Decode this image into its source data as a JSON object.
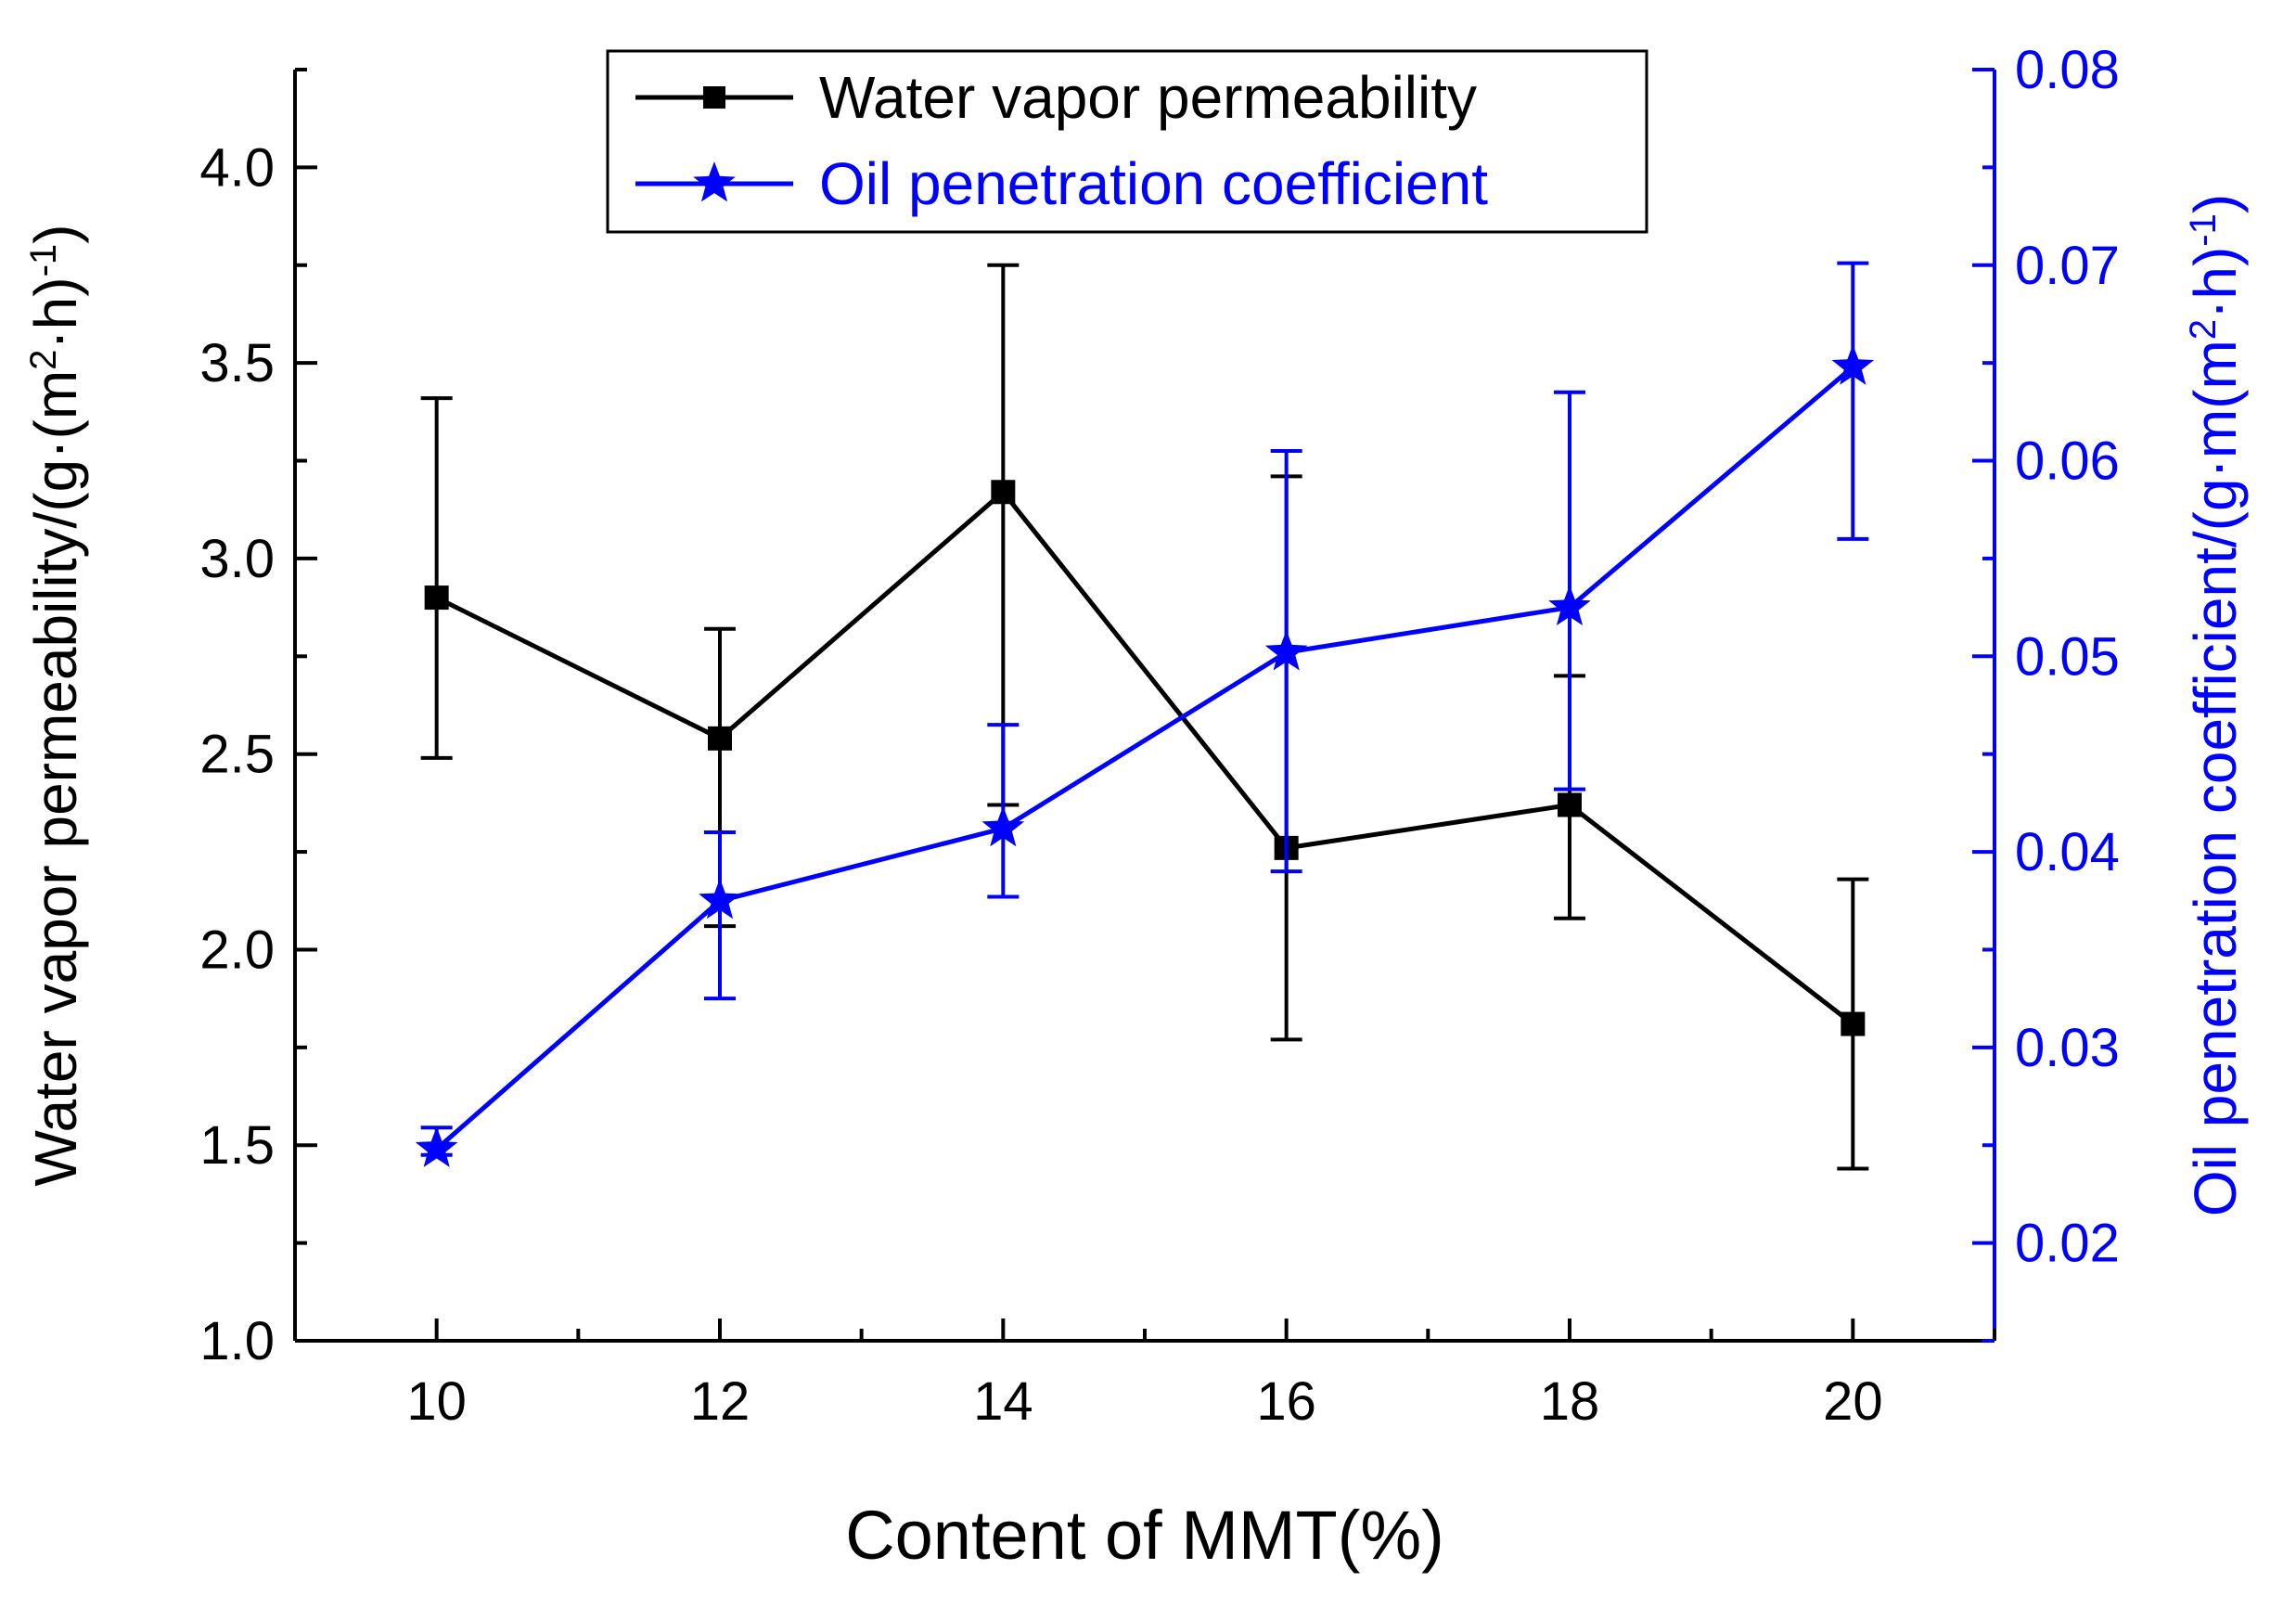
{
  "chart_data": {
    "type": "line",
    "title": "",
    "xlabel": "Content of MMT(%)",
    "x": [
      10,
      12,
      14,
      16,
      18,
      20
    ],
    "xlim": [
      9,
      21
    ],
    "xticks": [
      "10",
      "12",
      "14",
      "16",
      "18",
      "20"
    ],
    "left_axis": {
      "label_main": "Water vapor permeability/(g·(m",
      "label_sup1": "2",
      "label_mid": "·h)",
      "label_sup2": "-1",
      "label_end": ")",
      "ylim": [
        1.0,
        4.25
      ],
      "ticks": [
        "1.0",
        "1.5",
        "2.0",
        "2.5",
        "3.0",
        "3.5",
        "4.0"
      ],
      "color": "#000000"
    },
    "right_axis": {
      "label_main": "Oil penetration coefficient/(g·m(m",
      "label_sup1": "2",
      "label_mid": "·h)",
      "label_sup2": "-1",
      "label_end": ")",
      "ylim": [
        0.015,
        0.08
      ],
      "ticks": [
        "0.02",
        "0.03",
        "0.04",
        "0.05",
        "0.06",
        "0.07",
        "0.08"
      ],
      "color": "#0000ff"
    },
    "series": [
      {
        "name": "Water vapor permeability",
        "axis": "left",
        "marker": "square",
        "color": "#000000",
        "values": [
          2.9,
          2.54,
          3.17,
          2.26,
          2.37,
          1.81
        ],
        "err_low": [
          2.49,
          2.06,
          2.37,
          1.77,
          2.08,
          1.44
        ],
        "err_high": [
          3.41,
          2.82,
          3.75,
          3.21,
          2.7,
          2.18
        ]
      },
      {
        "name": "Oil penetration coefficient",
        "axis": "right",
        "marker": "star",
        "color": "#0000ff",
        "values": [
          0.0248,
          0.0375,
          0.0412,
          0.0502,
          0.0525,
          0.0648
        ],
        "err_low": [
          0.0245,
          0.0325,
          0.0377,
          0.039,
          0.0432,
          0.056
        ],
        "err_high": [
          0.0259,
          0.041,
          0.0465,
          0.0605,
          0.0635,
          0.0701
        ]
      }
    ],
    "legend": {
      "position": "top-center"
    }
  }
}
